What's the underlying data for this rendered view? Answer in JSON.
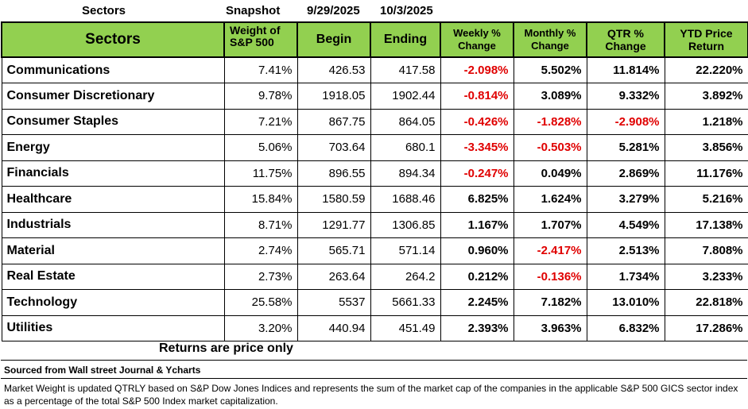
{
  "top": {
    "title": "Sectors",
    "snapshot": "Snapshot",
    "date_begin": "9/29/2025",
    "date_end": "10/3/2025"
  },
  "headers": {
    "sectors": "Sectors",
    "weight": "Weight of S&P 500",
    "begin": "Begin",
    "ending": "Ending",
    "weekly": "Weekly % Change",
    "monthly": "Monthly % Change",
    "qtr": "QTR % Change",
    "ytd": "YTD Price Return"
  },
  "rows": [
    {
      "name": "Communications",
      "weight": "7.41%",
      "begin": "426.53",
      "ending": "417.58",
      "weekly": "-2.098%",
      "monthly": "5.502%",
      "qtr": "11.814%",
      "ytd": "22.220%"
    },
    {
      "name": "Consumer Discretionary",
      "weight": "9.78%",
      "begin": "1918.05",
      "ending": "1902.44",
      "weekly": "-0.814%",
      "monthly": "3.089%",
      "qtr": "9.332%",
      "ytd": "3.892%"
    },
    {
      "name": "Consumer Staples",
      "weight": "7.21%",
      "begin": "867.75",
      "ending": "864.05",
      "weekly": "-0.426%",
      "monthly": "-1.828%",
      "qtr": "-2.908%",
      "ytd": "1.218%"
    },
    {
      "name": "Energy",
      "weight": "5.06%",
      "begin": "703.64",
      "ending": "680.1",
      "weekly": "-3.345%",
      "monthly": "-0.503%",
      "qtr": "5.281%",
      "ytd": "3.856%"
    },
    {
      "name": "Financials",
      "weight": "11.75%",
      "begin": "896.55",
      "ending": "894.34",
      "weekly": "-0.247%",
      "monthly": "0.049%",
      "qtr": "2.869%",
      "ytd": "11.176%"
    },
    {
      "name": "Healthcare",
      "weight": "15.84%",
      "begin": "1580.59",
      "ending": "1688.46",
      "weekly": "6.825%",
      "monthly": "1.624%",
      "qtr": "3.279%",
      "ytd": "5.216%"
    },
    {
      "name": "Industrials",
      "weight": "8.71%",
      "begin": "1291.77",
      "ending": "1306.85",
      "weekly": "1.167%",
      "monthly": "1.707%",
      "qtr": "4.549%",
      "ytd": "17.138%"
    },
    {
      "name": "Material",
      "weight": "2.74%",
      "begin": "565.71",
      "ending": "571.14",
      "weekly": "0.960%",
      "monthly": "-2.417%",
      "qtr": "2.513%",
      "ytd": "7.808%"
    },
    {
      "name": "Real Estate",
      "weight": "2.73%",
      "begin": "263.64",
      "ending": "264.2",
      "weekly": "0.212%",
      "monthly": "-0.136%",
      "qtr": "1.734%",
      "ytd": "3.233%"
    },
    {
      "name": "Technology",
      "weight": "25.58%",
      "begin": "5537",
      "ending": "5661.33",
      "weekly": "2.245%",
      "monthly": "7.182%",
      "qtr": "13.010%",
      "ytd": "22.818%"
    },
    {
      "name": "Utilities",
      "weight": "3.20%",
      "begin": "440.94",
      "ending": "451.49",
      "weekly": "2.393%",
      "monthly": "3.963%",
      "qtr": "6.832%",
      "ytd": "17.286%"
    }
  ],
  "notes": {
    "returns": "Returns are price only",
    "source": "Sourced from Wall street Journal & Ycharts",
    "market_weight": "Market Weight is updated QTRLY based on S&P Dow Jones Indices and represents the sum of the market cap of the companies in the applicable S&P 500 GICS sector index as a percentage of the total S&P 500 Index market capitalization."
  },
  "colors": {
    "header_bg": "#92d050",
    "negative": "#e00000"
  }
}
